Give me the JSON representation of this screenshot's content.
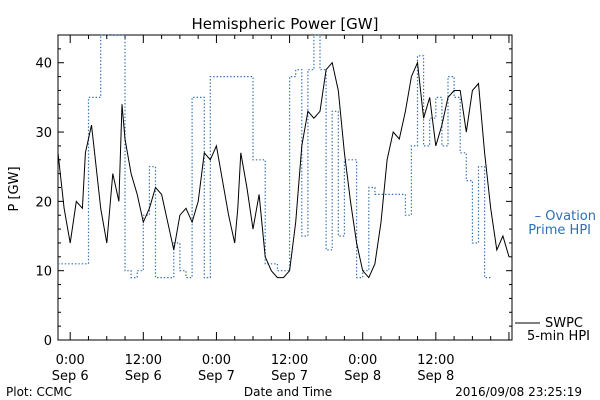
{
  "chart_data": {
    "type": "line",
    "title": "Hemispheric Power [GW]",
    "xlabel": "Date and Time",
    "ylabel": "P [GW]",
    "ylim": [
      0,
      44
    ],
    "yticks": [
      0,
      10,
      20,
      30,
      40
    ],
    "xlim_hours": [
      -2,
      72.5
    ],
    "xticks": [
      {
        "hour": 0,
        "time": "0:00",
        "date": "Sep 6"
      },
      {
        "hour": 12,
        "time": "12:00",
        "date": "Sep 6"
      },
      {
        "hour": 24,
        "time": "0:00",
        "date": "Sep 7"
      },
      {
        "hour": 36,
        "time": "12:00",
        "date": "Sep 7"
      },
      {
        "hour": 48,
        "time": "0:00",
        "date": "Sep 8"
      },
      {
        "hour": 60,
        "time": "12:00",
        "date": "Sep 8"
      }
    ],
    "grid": false,
    "series": [
      {
        "name": "SWPC 5-min HPI",
        "legend_lines": [
          "SWPC",
          "5-min HPI"
        ],
        "color": "#000000",
        "style": "solid",
        "points": [
          [
            -2,
            27
          ],
          [
            -1,
            19
          ],
          [
            0,
            14
          ],
          [
            1,
            20
          ],
          [
            2,
            19
          ],
          [
            2.5,
            27
          ],
          [
            3.5,
            31
          ],
          [
            4,
            27
          ],
          [
            5,
            19
          ],
          [
            6,
            14
          ],
          [
            7,
            24
          ],
          [
            8,
            20
          ],
          [
            8.5,
            34
          ],
          [
            9,
            29
          ],
          [
            10,
            24
          ],
          [
            11,
            21
          ],
          [
            12,
            17
          ],
          [
            13,
            19
          ],
          [
            14,
            22
          ],
          [
            15,
            21
          ],
          [
            16,
            17
          ],
          [
            17,
            13
          ],
          [
            18,
            18
          ],
          [
            19,
            19
          ],
          [
            20,
            17
          ],
          [
            21,
            20
          ],
          [
            22,
            27
          ],
          [
            23,
            26
          ],
          [
            24,
            28
          ],
          [
            25,
            23
          ],
          [
            26,
            18
          ],
          [
            27,
            14
          ],
          [
            27.5,
            19
          ],
          [
            28,
            27
          ],
          [
            29,
            22
          ],
          [
            30,
            16
          ],
          [
            31,
            21
          ],
          [
            32,
            12
          ],
          [
            33,
            10
          ],
          [
            34,
            9
          ],
          [
            35,
            9
          ],
          [
            36,
            10
          ],
          [
            37,
            17
          ],
          [
            38,
            28
          ],
          [
            39,
            33
          ],
          [
            40,
            32
          ],
          [
            41,
            33
          ],
          [
            42,
            39
          ],
          [
            43,
            40
          ],
          [
            44,
            36
          ],
          [
            45,
            27
          ],
          [
            46,
            20
          ],
          [
            47,
            14
          ],
          [
            48,
            10
          ],
          [
            49,
            9
          ],
          [
            50,
            11
          ],
          [
            51,
            17
          ],
          [
            52,
            26
          ],
          [
            53,
            30
          ],
          [
            54,
            29
          ],
          [
            55,
            33
          ],
          [
            56,
            38
          ],
          [
            57,
            40
          ],
          [
            58,
            32
          ],
          [
            59,
            35
          ],
          [
            60,
            28
          ],
          [
            61,
            31
          ],
          [
            62,
            35
          ],
          [
            63,
            36
          ],
          [
            64,
            36
          ],
          [
            65,
            30
          ],
          [
            66,
            36
          ],
          [
            67,
            37
          ],
          [
            68,
            27
          ],
          [
            69,
            19
          ],
          [
            70,
            13
          ],
          [
            71,
            15
          ],
          [
            72,
            12
          ]
        ]
      },
      {
        "name": "Ovation Prime HPI",
        "legend_lines": [
          "Ovation",
          "Prime HPI"
        ],
        "color": "#2f6fb5",
        "style": "dotted",
        "points": [
          [
            -2,
            11
          ],
          [
            1,
            11
          ],
          [
            3,
            35
          ],
          [
            5,
            44
          ],
          [
            8,
            44
          ],
          [
            9,
            10
          ],
          [
            10,
            9
          ],
          [
            11,
            10
          ],
          [
            12,
            18
          ],
          [
            13,
            25
          ],
          [
            14,
            9
          ],
          [
            15,
            9
          ],
          [
            17,
            14
          ],
          [
            18,
            10
          ],
          [
            19,
            9
          ],
          [
            20,
            35
          ],
          [
            21,
            35
          ],
          [
            22,
            9
          ],
          [
            23,
            38
          ],
          [
            27,
            38
          ],
          [
            30,
            26
          ],
          [
            32,
            11
          ],
          [
            33,
            11
          ],
          [
            34,
            10
          ],
          [
            35,
            10
          ],
          [
            36,
            38
          ],
          [
            37,
            39
          ],
          [
            38,
            15
          ],
          [
            39,
            39
          ],
          [
            40,
            44
          ],
          [
            41,
            39
          ],
          [
            42,
            13
          ],
          [
            43,
            33
          ],
          [
            44,
            15
          ],
          [
            45,
            26
          ],
          [
            47,
            9
          ],
          [
            48,
            10
          ],
          [
            49,
            22
          ],
          [
            50,
            21
          ],
          [
            51,
            21
          ],
          [
            55,
            18
          ],
          [
            56,
            28
          ],
          [
            57,
            41
          ],
          [
            58,
            28
          ],
          [
            59,
            32
          ],
          [
            60,
            35
          ],
          [
            61,
            28
          ],
          [
            62,
            38
          ],
          [
            63,
            35
          ],
          [
            64,
            27
          ],
          [
            65,
            23
          ],
          [
            66,
            14
          ],
          [
            67,
            25
          ],
          [
            68,
            9
          ],
          [
            69,
            9
          ]
        ]
      }
    ]
  },
  "legend": {
    "swpc": {
      "line1": "SWPC",
      "line2": "5-min HPI"
    },
    "ovation": {
      "line1": "Ovation",
      "line2": "Prime HPI",
      "dash": "–"
    }
  },
  "footer": {
    "left": "Plot: CCMC",
    "center": "Date and Time",
    "right": "2016/09/08 23:25:19"
  }
}
